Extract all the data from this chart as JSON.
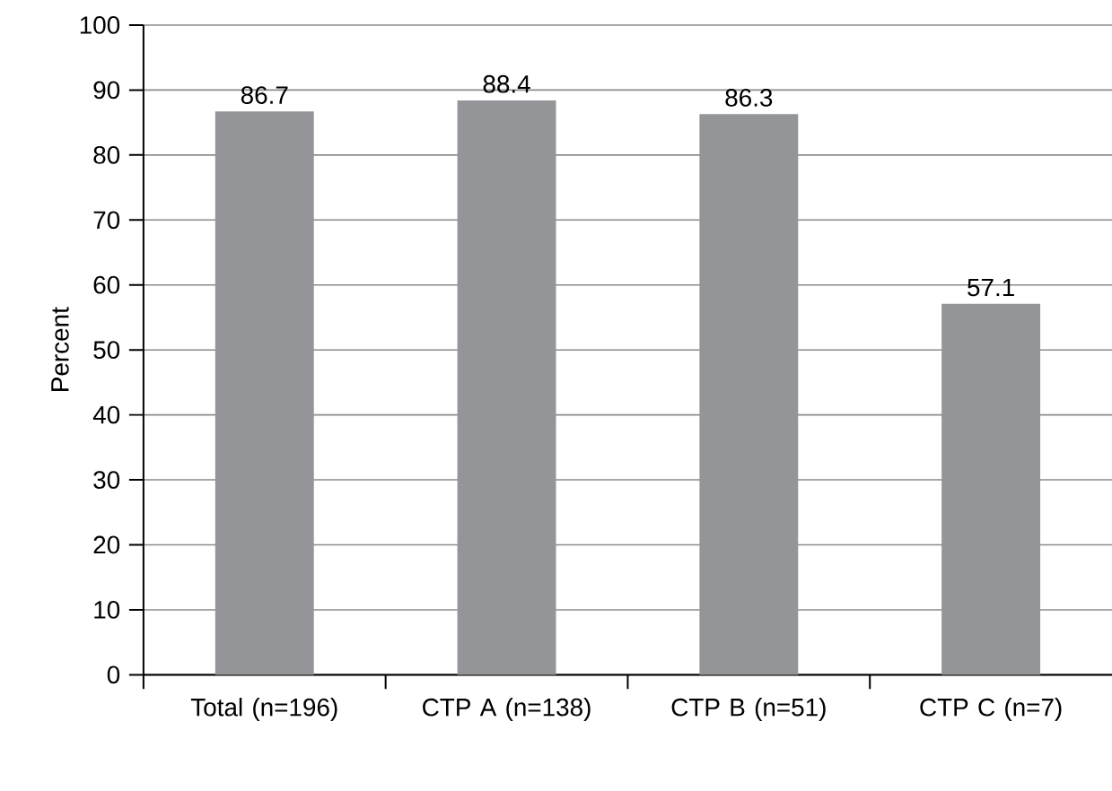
{
  "chart_data": {
    "type": "bar",
    "categories": [
      "Total (n=196)",
      "CTP A (n=138)",
      "CTP B (n=51)",
      "CTP C (n=7)"
    ],
    "values": [
      86.7,
      88.4,
      86.3,
      57.1
    ],
    "color": "#939598",
    "ylabel": "Percent",
    "ylim": [
      0,
      100
    ],
    "yticks": [
      0,
      10,
      20,
      30,
      40,
      50,
      60,
      70,
      80,
      90,
      100
    ],
    "grid": "y",
    "data_labels": true
  }
}
